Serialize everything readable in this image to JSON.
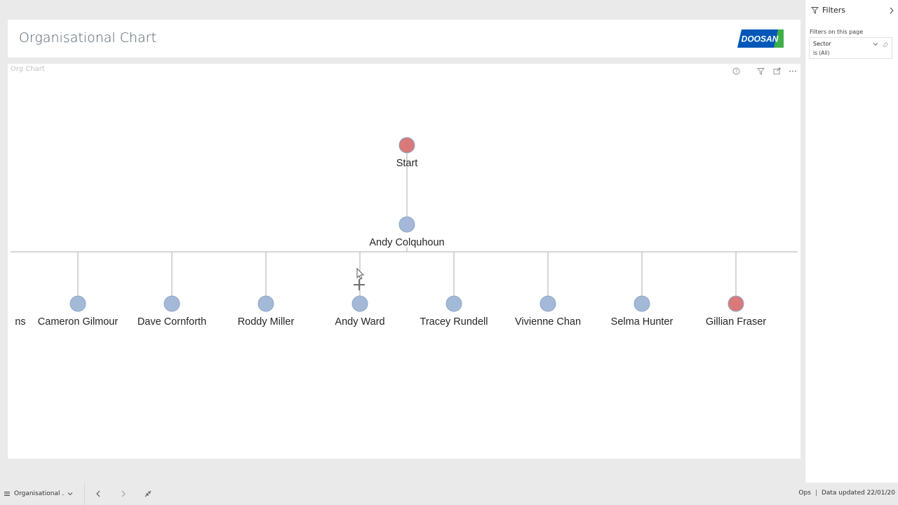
{
  "header": {
    "title": "Organisational Chart",
    "logo_text": "DOOSAN",
    "logo_colors": {
      "blue": "#0057b8",
      "green": "#3fae49"
    }
  },
  "visual": {
    "title": "Org Chart",
    "actions": [
      "help-icon",
      "filter-icon",
      "focus-mode-icon",
      "more-options-icon"
    ]
  },
  "org_chart": {
    "colors": {
      "node_default": "#a4b9d8",
      "node_alert": "#d87a7a",
      "node_stroke": "#8ea6c6",
      "line": "#bfbfbf"
    },
    "root": {
      "name": "Start",
      "status": "alert"
    },
    "manager": {
      "name": "Andy Colquhoun",
      "status": "default"
    },
    "reports": [
      {
        "name": "ns",
        "status": "default",
        "partial": true
      },
      {
        "name": "Cameron Gilmour",
        "status": "default"
      },
      {
        "name": "Dave Cornforth",
        "status": "default"
      },
      {
        "name": "Roddy Miller",
        "status": "default"
      },
      {
        "name": "Andy Ward",
        "status": "default"
      },
      {
        "name": "Tracey Rundell",
        "status": "default"
      },
      {
        "name": "Vivienne Chan",
        "status": "default"
      },
      {
        "name": "Selma Hunter",
        "status": "default"
      },
      {
        "name": "Gillian Fraser",
        "status": "alert"
      }
    ]
  },
  "filters": {
    "header_label": "Filters",
    "section_label": "Filters on this page",
    "cards": [
      {
        "field": "Sector",
        "value": "is (All)"
      }
    ]
  },
  "status_bar": {
    "page_name": "Organisational ...",
    "workspace": "Ops",
    "separator": "|",
    "updated": "Data updated 22/01/20"
  }
}
